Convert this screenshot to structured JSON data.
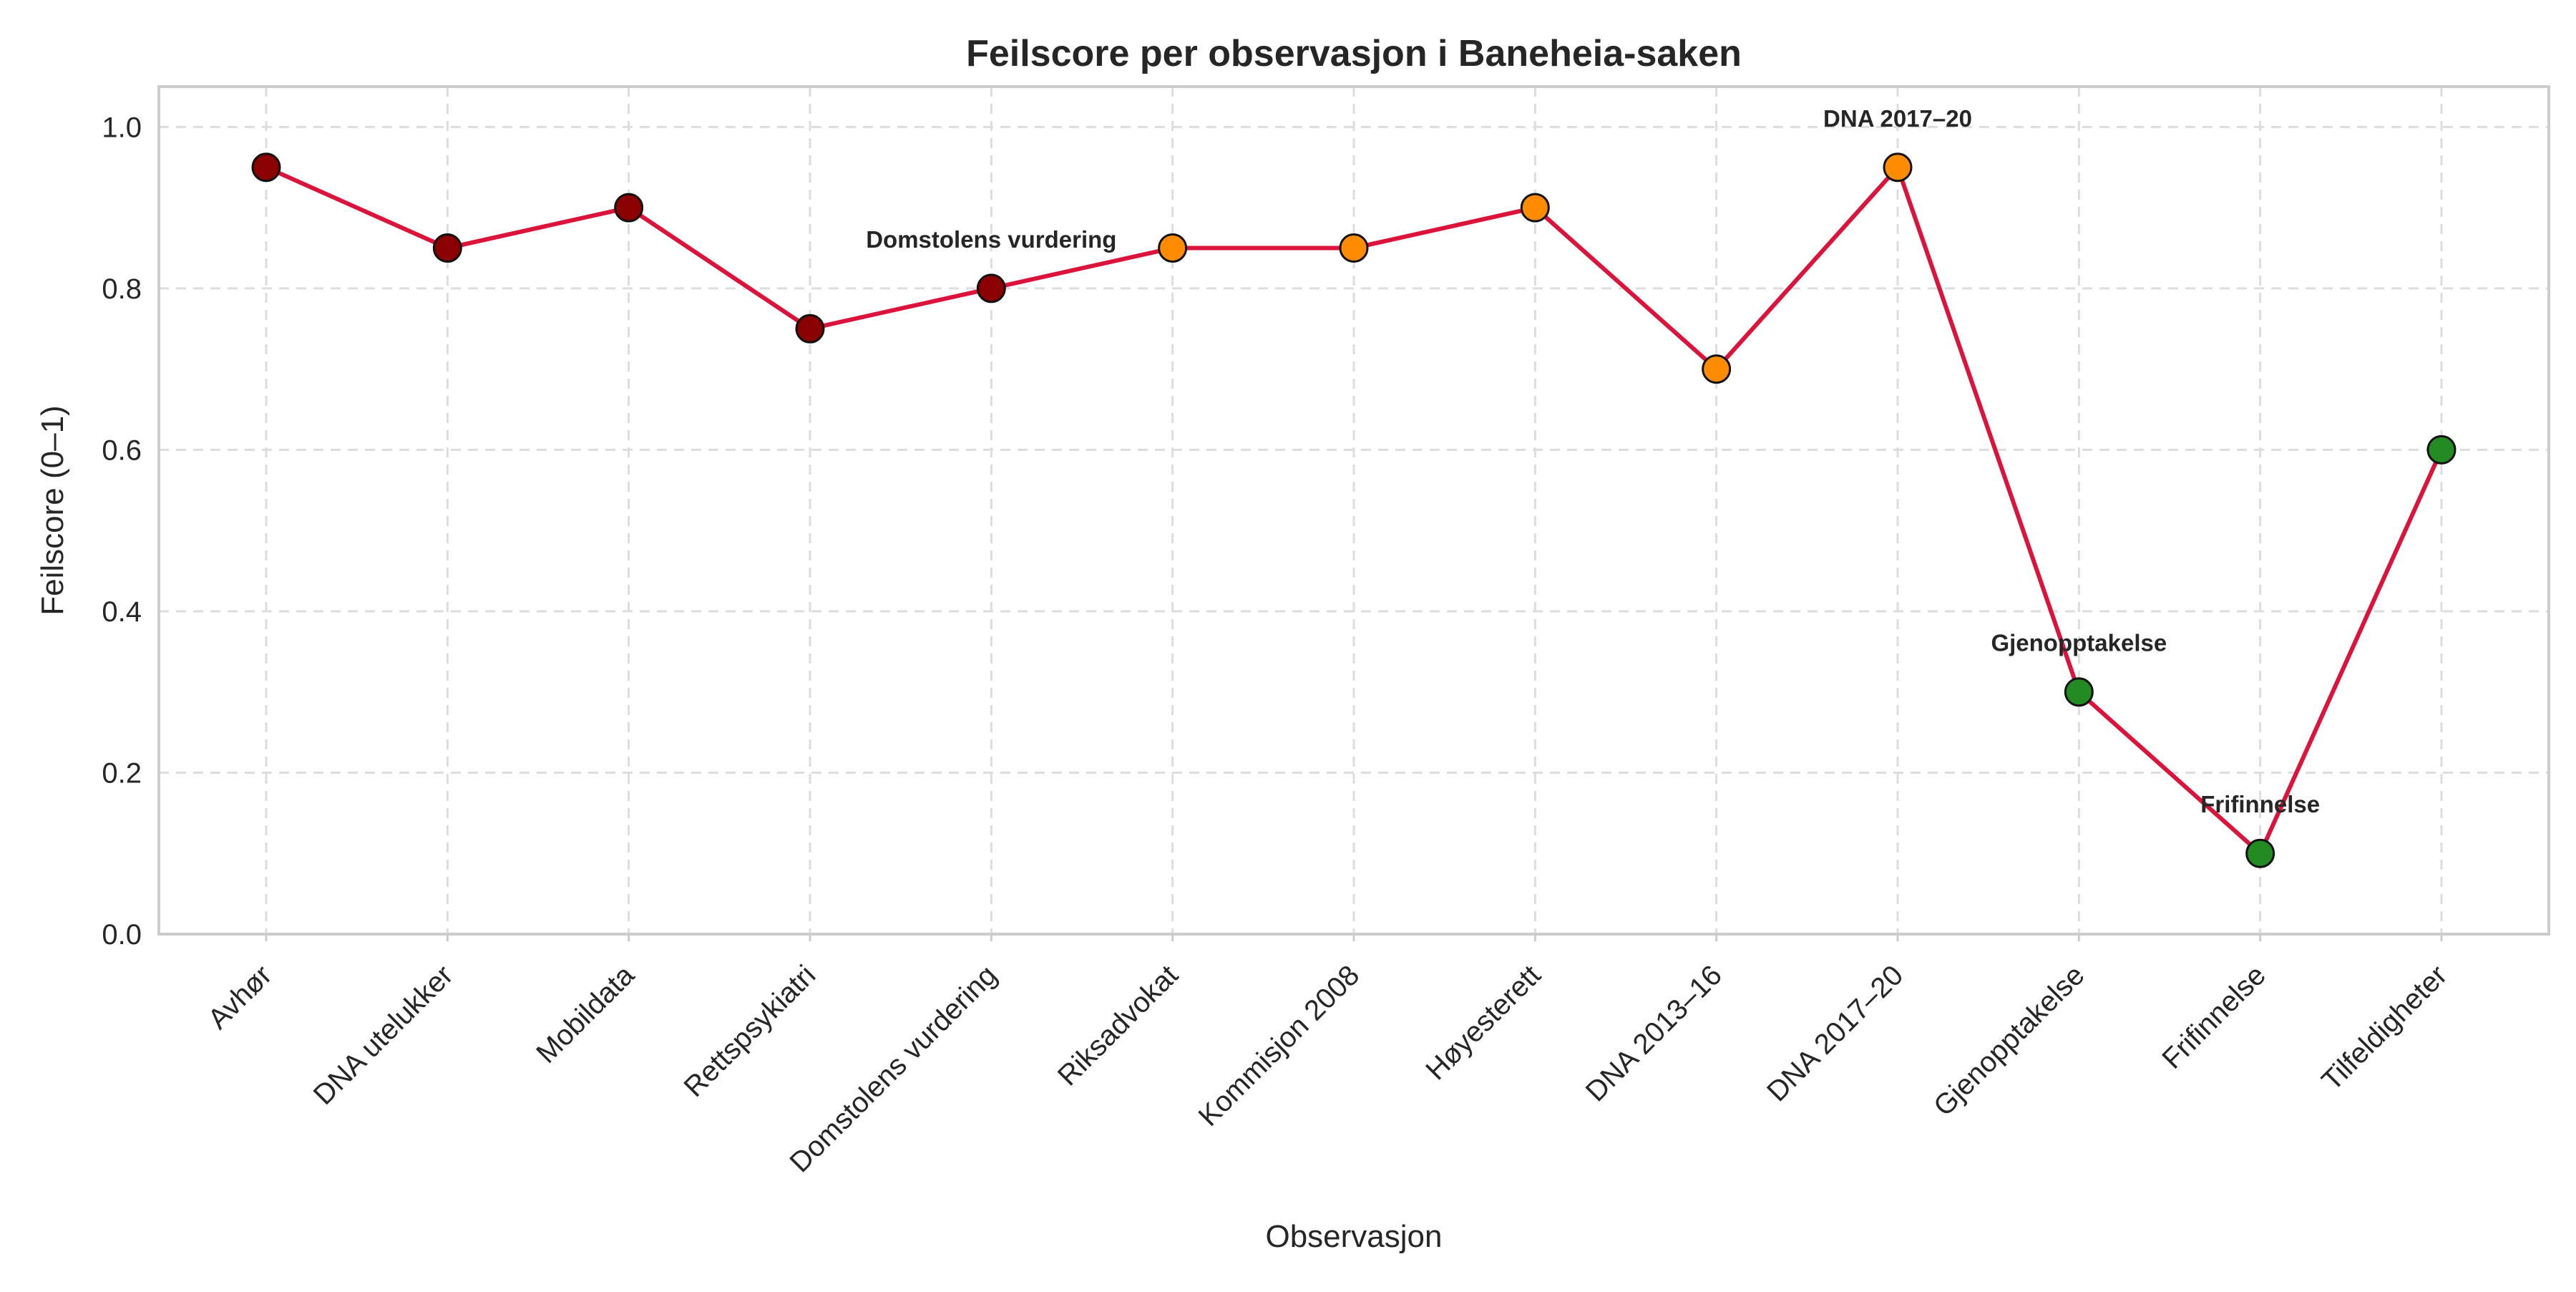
{
  "chart_data": {
    "type": "line",
    "title": "Feilscore per observasjon i Baneheia-saken",
    "xlabel": "Observasjon",
    "ylabel": "Feilscore (0–1)",
    "ylim": [
      0,
      1.05
    ],
    "yticks": [
      "0.0",
      "0.2",
      "0.4",
      "0.6",
      "0.8",
      "1.0"
    ],
    "grid": true,
    "categories": [
      "Avhør",
      "DNA utelukker",
      "Mobildata",
      "Rettspsykiatri",
      "Domstolens vurdering",
      "Riksadvokat",
      "Kommisjon 2008",
      "Høyesterett",
      "DNA 2013–16",
      "DNA 2017–20",
      "Gjenopptakelse",
      "Frifinnelse",
      "Tilfeldigheter"
    ],
    "series": [
      {
        "values": [
          0.95,
          0.85,
          0.9,
          0.75,
          0.8,
          0.85,
          0.85,
          0.9,
          0.7,
          0.95,
          0.3,
          0.1,
          0.6
        ],
        "line_color": "#dc143c",
        "point_colors": [
          "#8b0000",
          "#8b0000",
          "#8b0000",
          "#8b0000",
          "#8b0000",
          "#ff8c00",
          "#ff8c00",
          "#ff8c00",
          "#ff8c00",
          "#ff8c00",
          "#228b22",
          "#228b22",
          "#228b22"
        ]
      }
    ],
    "annotations": [
      {
        "index": 4,
        "text": "Domstolens vurdering"
      },
      {
        "index": 9,
        "text": "DNA 2017–20"
      },
      {
        "index": 10,
        "text": "Gjenopptakelse"
      },
      {
        "index": 11,
        "text": "Frifinnelse"
      }
    ]
  }
}
